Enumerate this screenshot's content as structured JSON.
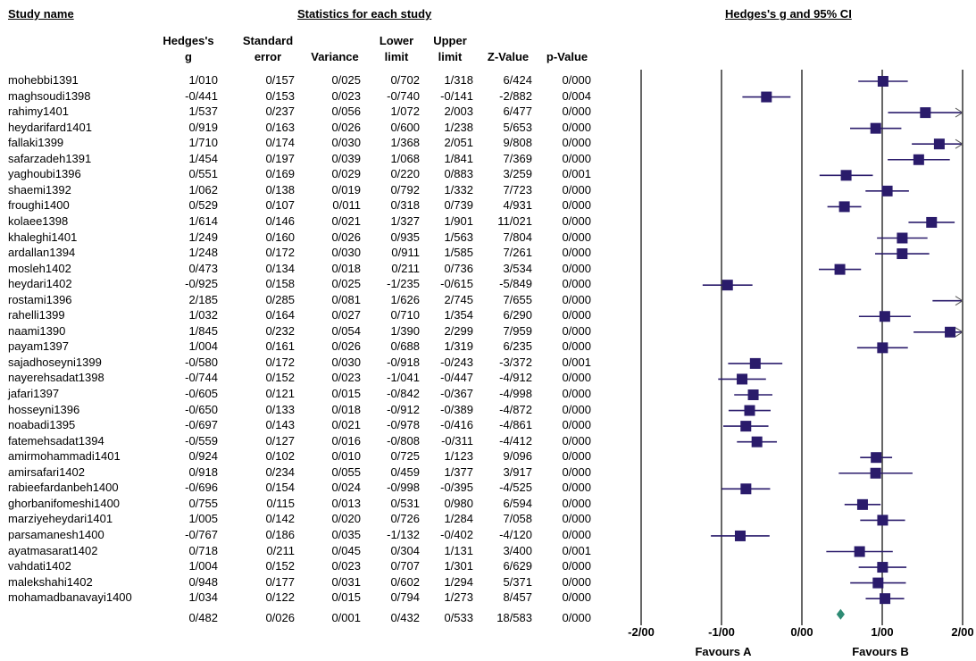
{
  "headers": {
    "study_name": "Study name",
    "statistics": "Statistics for each study",
    "plot": "Hedges's g and 95% CI",
    "col_g": [
      "Hedges's",
      "g"
    ],
    "col_se": [
      "Standard",
      "error"
    ],
    "col_var": "Variance",
    "col_lower": [
      "Lower",
      "limit"
    ],
    "col_upper": [
      "Upper",
      "limit"
    ],
    "col_z": "Z-Value",
    "col_p": "p-Value"
  },
  "rows": [
    {
      "name": "mohebbi1391",
      "g": "1/010",
      "se": "0/157",
      "var": "0/025",
      "lo": "0/702",
      "hi": "1/318",
      "z": "6/424",
      "p": "0/000"
    },
    {
      "name": "maghsoudi1398",
      "g": "-0/441",
      "se": "0/153",
      "var": "0/023",
      "lo": "-0/740",
      "hi": "-0/141",
      "z": "-2/882",
      "p": "0/004"
    },
    {
      "name": "rahimy1401",
      "g": "1/537",
      "se": "0/237",
      "var": "0/056",
      "lo": "1/072",
      "hi": "2/003",
      "z": "6/477",
      "p": "0/000"
    },
    {
      "name": "heydarifard1401",
      "g": "0/919",
      "se": "0/163",
      "var": "0/026",
      "lo": "0/600",
      "hi": "1/238",
      "z": "5/653",
      "p": "0/000"
    },
    {
      "name": "fallaki1399",
      "g": "1/710",
      "se": "0/174",
      "var": "0/030",
      "lo": "1/368",
      "hi": "2/051",
      "z": "9/808",
      "p": "0/000"
    },
    {
      "name": "safarzadeh1391",
      "g": "1/454",
      "se": "0/197",
      "var": "0/039",
      "lo": "1/068",
      "hi": "1/841",
      "z": "7/369",
      "p": "0/000"
    },
    {
      "name": "yaghoubi1396",
      "g": "0/551",
      "se": "0/169",
      "var": "0/029",
      "lo": "0/220",
      "hi": "0/883",
      "z": "3/259",
      "p": "0/001"
    },
    {
      "name": "shaemi1392",
      "g": "1/062",
      "se": "0/138",
      "var": "0/019",
      "lo": "0/792",
      "hi": "1/332",
      "z": "7/723",
      "p": "0/000"
    },
    {
      "name": "froughi1400",
      "g": "0/529",
      "se": "0/107",
      "var": "0/011",
      "lo": "0/318",
      "hi": "0/739",
      "z": "4/931",
      "p": "0/000"
    },
    {
      "name": "kolaee1398",
      "g": "1/614",
      "se": "0/146",
      "var": "0/021",
      "lo": "1/327",
      "hi": "1/901",
      "z": "11/021",
      "p": "0/000"
    },
    {
      "name": "khaleghi1401",
      "g": "1/249",
      "se": "0/160",
      "var": "0/026",
      "lo": "0/935",
      "hi": "1/563",
      "z": "7/804",
      "p": "0/000"
    },
    {
      "name": "ardallan1394",
      "g": "1/248",
      "se": "0/172",
      "var": "0/030",
      "lo": "0/911",
      "hi": "1/585",
      "z": "7/261",
      "p": "0/000"
    },
    {
      "name": "mosleh1402",
      "g": "0/473",
      "se": "0/134",
      "var": "0/018",
      "lo": "0/211",
      "hi": "0/736",
      "z": "3/534",
      "p": "0/000"
    },
    {
      "name": "heydari1402",
      "g": "-0/925",
      "se": "0/158",
      "var": "0/025",
      "lo": "-1/235",
      "hi": "-0/615",
      "z": "-5/849",
      "p": "0/000"
    },
    {
      "name": "rostami1396",
      "g": "2/185",
      "se": "0/285",
      "var": "0/081",
      "lo": "1/626",
      "hi": "2/745",
      "z": "7/655",
      "p": "0/000"
    },
    {
      "name": "rahelli1399",
      "g": "1/032",
      "se": "0/164",
      "var": "0/027",
      "lo": "0/710",
      "hi": "1/354",
      "z": "6/290",
      "p": "0/000"
    },
    {
      "name": "naami1390",
      "g": "1/845",
      "se": "0/232",
      "var": "0/054",
      "lo": "1/390",
      "hi": "2/299",
      "z": "7/959",
      "p": "0/000"
    },
    {
      "name": "payam1397",
      "g": "1/004",
      "se": "0/161",
      "var": "0/026",
      "lo": "0/688",
      "hi": "1/319",
      "z": "6/235",
      "p": "0/000"
    },
    {
      "name": "sajadhoseyni1399",
      "g": "-0/580",
      "se": "0/172",
      "var": "0/030",
      "lo": "-0/918",
      "hi": "-0/243",
      "z": "-3/372",
      "p": "0/001"
    },
    {
      "name": "nayerehsadat1398",
      "g": "-0/744",
      "se": "0/152",
      "var": "0/023",
      "lo": "-1/041",
      "hi": "-0/447",
      "z": "-4/912",
      "p": "0/000"
    },
    {
      "name": "jafari1397",
      "g": "-0/605",
      "se": "0/121",
      "var": "0/015",
      "lo": "-0/842",
      "hi": "-0/367",
      "z": "-4/998",
      "p": "0/000"
    },
    {
      "name": "hosseyni1396",
      "g": "-0/650",
      "se": "0/133",
      "var": "0/018",
      "lo": "-0/912",
      "hi": "-0/389",
      "z": "-4/872",
      "p": "0/000"
    },
    {
      "name": "noabadi1395",
      "g": "-0/697",
      "se": "0/143",
      "var": "0/021",
      "lo": "-0/978",
      "hi": "-0/416",
      "z": "-4/861",
      "p": "0/000"
    },
    {
      "name": "fatemehsadat1394",
      "g": "-0/559",
      "se": "0/127",
      "var": "0/016",
      "lo": "-0/808",
      "hi": "-0/311",
      "z": "-4/412",
      "p": "0/000"
    },
    {
      "name": "amirmohammadi1401",
      "g": "0/924",
      "se": "0/102",
      "var": "0/010",
      "lo": "0/725",
      "hi": "1/123",
      "z": "9/096",
      "p": "0/000"
    },
    {
      "name": "amirsafari1402",
      "g": "0/918",
      "se": "0/234",
      "var": "0/055",
      "lo": "0/459",
      "hi": "1/377",
      "z": "3/917",
      "p": "0/000"
    },
    {
      "name": "rabieefardanbeh1400",
      "g": "-0/696",
      "se": "0/154",
      "var": "0/024",
      "lo": "-0/998",
      "hi": "-0/395",
      "z": "-4/525",
      "p": "0/000"
    },
    {
      "name": "ghorbanifomeshi1400",
      "g": "0/755",
      "se": "0/115",
      "var": "0/013",
      "lo": "0/531",
      "hi": "0/980",
      "z": "6/594",
      "p": "0/000"
    },
    {
      "name": "marziyeheydari1401",
      "g": "1/005",
      "se": "0/142",
      "var": "0/020",
      "lo": "0/726",
      "hi": "1/284",
      "z": "7/058",
      "p": "0/000"
    },
    {
      "name": "parsamanesh1400",
      "g": "-0/767",
      "se": "0/186",
      "var": "0/035",
      "lo": "-1/132",
      "hi": "-0/402",
      "z": "-4/120",
      "p": "0/000"
    },
    {
      "name": "ayatmasarat1402",
      "g": "0/718",
      "se": "0/211",
      "var": "0/045",
      "lo": "0/304",
      "hi": "1/131",
      "z": "3/400",
      "p": "0/001"
    },
    {
      "name": "vahdati1402",
      "g": "1/004",
      "se": "0/152",
      "var": "0/023",
      "lo": "0/707",
      "hi": "1/301",
      "z": "6/629",
      "p": "0/000"
    },
    {
      "name": "malekshahi1402",
      "g": "0/948",
      "se": "0/177",
      "var": "0/031",
      "lo": "0/602",
      "hi": "1/294",
      "z": "5/371",
      "p": "0/000"
    },
    {
      "name": "mohamadbanavayi1400",
      "g": "1/034",
      "se": "0/122",
      "var": "0/015",
      "lo": "0/794",
      "hi": "1/273",
      "z": "8/457",
      "p": "0/000"
    }
  ],
  "summary": {
    "g": "0/482",
    "se": "0/026",
    "var": "0/001",
    "lo": "0/432",
    "hi": "0/533",
    "z": "18/583",
    "p": "0/000"
  },
  "axis": {
    "ticks": [
      "-2/00",
      "-1/00",
      "0/00",
      "1/00",
      "2/00"
    ],
    "favours_a": "Favours A",
    "favours_b": "Favours B"
  },
  "chart_data": {
    "type": "scatter",
    "subtype": "forest_plot",
    "title": "Hedges's g and 95% CI",
    "xlim": [
      -2,
      2
    ],
    "xticks": [
      -2,
      -1,
      0,
      1,
      2
    ],
    "studies": [
      {
        "name": "mohebbi1391",
        "g": 1.01,
        "lo": 0.702,
        "hi": 1.318
      },
      {
        "name": "maghsoudi1398",
        "g": -0.441,
        "lo": -0.74,
        "hi": -0.141
      },
      {
        "name": "rahimy1401",
        "g": 1.537,
        "lo": 1.072,
        "hi": 2.003
      },
      {
        "name": "heydarifard1401",
        "g": 0.919,
        "lo": 0.6,
        "hi": 1.238
      },
      {
        "name": "fallaki1399",
        "g": 1.71,
        "lo": 1.368,
        "hi": 2.051
      },
      {
        "name": "safarzadeh1391",
        "g": 1.454,
        "lo": 1.068,
        "hi": 1.841
      },
      {
        "name": "yaghoubi1396",
        "g": 0.551,
        "lo": 0.22,
        "hi": 0.883
      },
      {
        "name": "shaemi1392",
        "g": 1.062,
        "lo": 0.792,
        "hi": 1.332
      },
      {
        "name": "froughi1400",
        "g": 0.529,
        "lo": 0.318,
        "hi": 0.739
      },
      {
        "name": "kolaee1398",
        "g": 1.614,
        "lo": 1.327,
        "hi": 1.901
      },
      {
        "name": "khaleghi1401",
        "g": 1.249,
        "lo": 0.935,
        "hi": 1.563
      },
      {
        "name": "ardallan1394",
        "g": 1.248,
        "lo": 0.911,
        "hi": 1.585
      },
      {
        "name": "mosleh1402",
        "g": 0.473,
        "lo": 0.211,
        "hi": 0.736
      },
      {
        "name": "heydari1402",
        "g": -0.925,
        "lo": -1.235,
        "hi": -0.615
      },
      {
        "name": "rostami1396",
        "g": 2.185,
        "lo": 1.626,
        "hi": 2.745
      },
      {
        "name": "rahelli1399",
        "g": 1.032,
        "lo": 0.71,
        "hi": 1.354
      },
      {
        "name": "naami1390",
        "g": 1.845,
        "lo": 1.39,
        "hi": 2.299
      },
      {
        "name": "payam1397",
        "g": 1.004,
        "lo": 0.688,
        "hi": 1.319
      },
      {
        "name": "sajadhoseyni1399",
        "g": -0.58,
        "lo": -0.918,
        "hi": -0.243
      },
      {
        "name": "nayerehsadat1398",
        "g": -0.744,
        "lo": -1.041,
        "hi": -0.447
      },
      {
        "name": "jafari1397",
        "g": -0.605,
        "lo": -0.842,
        "hi": -0.367
      },
      {
        "name": "hosseyni1396",
        "g": -0.65,
        "lo": -0.912,
        "hi": -0.389
      },
      {
        "name": "noabadi1395",
        "g": -0.697,
        "lo": -0.978,
        "hi": -0.416
      },
      {
        "name": "fatemehsadat1394",
        "g": -0.559,
        "lo": -0.808,
        "hi": -0.311
      },
      {
        "name": "amirmohammadi1401",
        "g": 0.924,
        "lo": 0.725,
        "hi": 1.123
      },
      {
        "name": "amirsafari1402",
        "g": 0.918,
        "lo": 0.459,
        "hi": 1.377
      },
      {
        "name": "rabieefardanbeh1400",
        "g": -0.696,
        "lo": -0.998,
        "hi": -0.395
      },
      {
        "name": "ghorbanifomeshi1400",
        "g": 0.755,
        "lo": 0.531,
        "hi": 0.98
      },
      {
        "name": "marziyeheydari1401",
        "g": 1.005,
        "lo": 0.726,
        "hi": 1.284
      },
      {
        "name": "parsamanesh1400",
        "g": -0.767,
        "lo": -1.132,
        "hi": -0.402
      },
      {
        "name": "ayatmasarat1402",
        "g": 0.718,
        "lo": 0.304,
        "hi": 1.131
      },
      {
        "name": "vahdati1402",
        "g": 1.004,
        "lo": 0.707,
        "hi": 1.301
      },
      {
        "name": "malekshahi1402",
        "g": 0.948,
        "lo": 0.602,
        "hi": 1.294
      },
      {
        "name": "mohamadbanavayi1400",
        "g": 1.034,
        "lo": 0.794,
        "hi": 1.273
      }
    ],
    "summary": {
      "g": 0.482,
      "lo": 0.432,
      "hi": 0.533
    },
    "colors": {
      "marker": "#2a1b6b",
      "summary": "#2e8b74",
      "line": "#000000"
    }
  }
}
